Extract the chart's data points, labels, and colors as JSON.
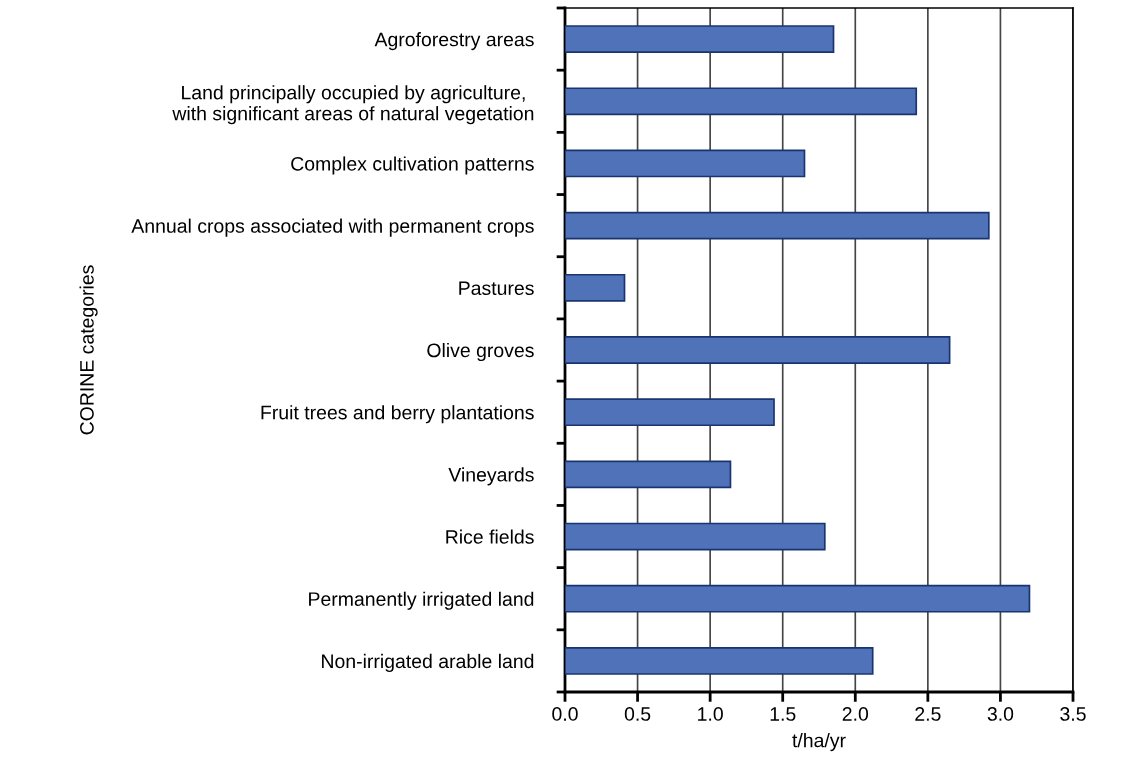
{
  "chart_data": {
    "type": "bar",
    "orientation": "horizontal",
    "xlabel": "t/ha/yr",
    "ylabel": "CORINE categories",
    "categories": [
      "Agroforestry areas",
      "Land principally occupied by agriculture,\nwith significant areas of natural vegetation",
      "Complex cultivation patterns",
      "Annual crops associated with permanent crops",
      "Pastures",
      "Olive groves",
      "Fruit trees and berry plantations",
      "Vineyards",
      "Rice fields",
      "Permanently irrigated land",
      "Non-irrigated arable land"
    ],
    "values": [
      1.85,
      2.42,
      1.65,
      2.92,
      0.41,
      2.65,
      1.44,
      1.14,
      1.79,
      3.2,
      2.12
    ],
    "color": "#4f72b8",
    "xlim": [
      0,
      3.5
    ],
    "xticks": [
      {
        "value": 0,
        "label": "0.0"
      },
      0.5,
      {
        "value": 1,
        "label": "1.0"
      },
      1.5,
      {
        "value": 2,
        "label": "2.0"
      },
      2.5,
      {
        "value": 3,
        "label": "3.0"
      },
      3.5
    ],
    "grid": "x",
    "legend": false
  }
}
